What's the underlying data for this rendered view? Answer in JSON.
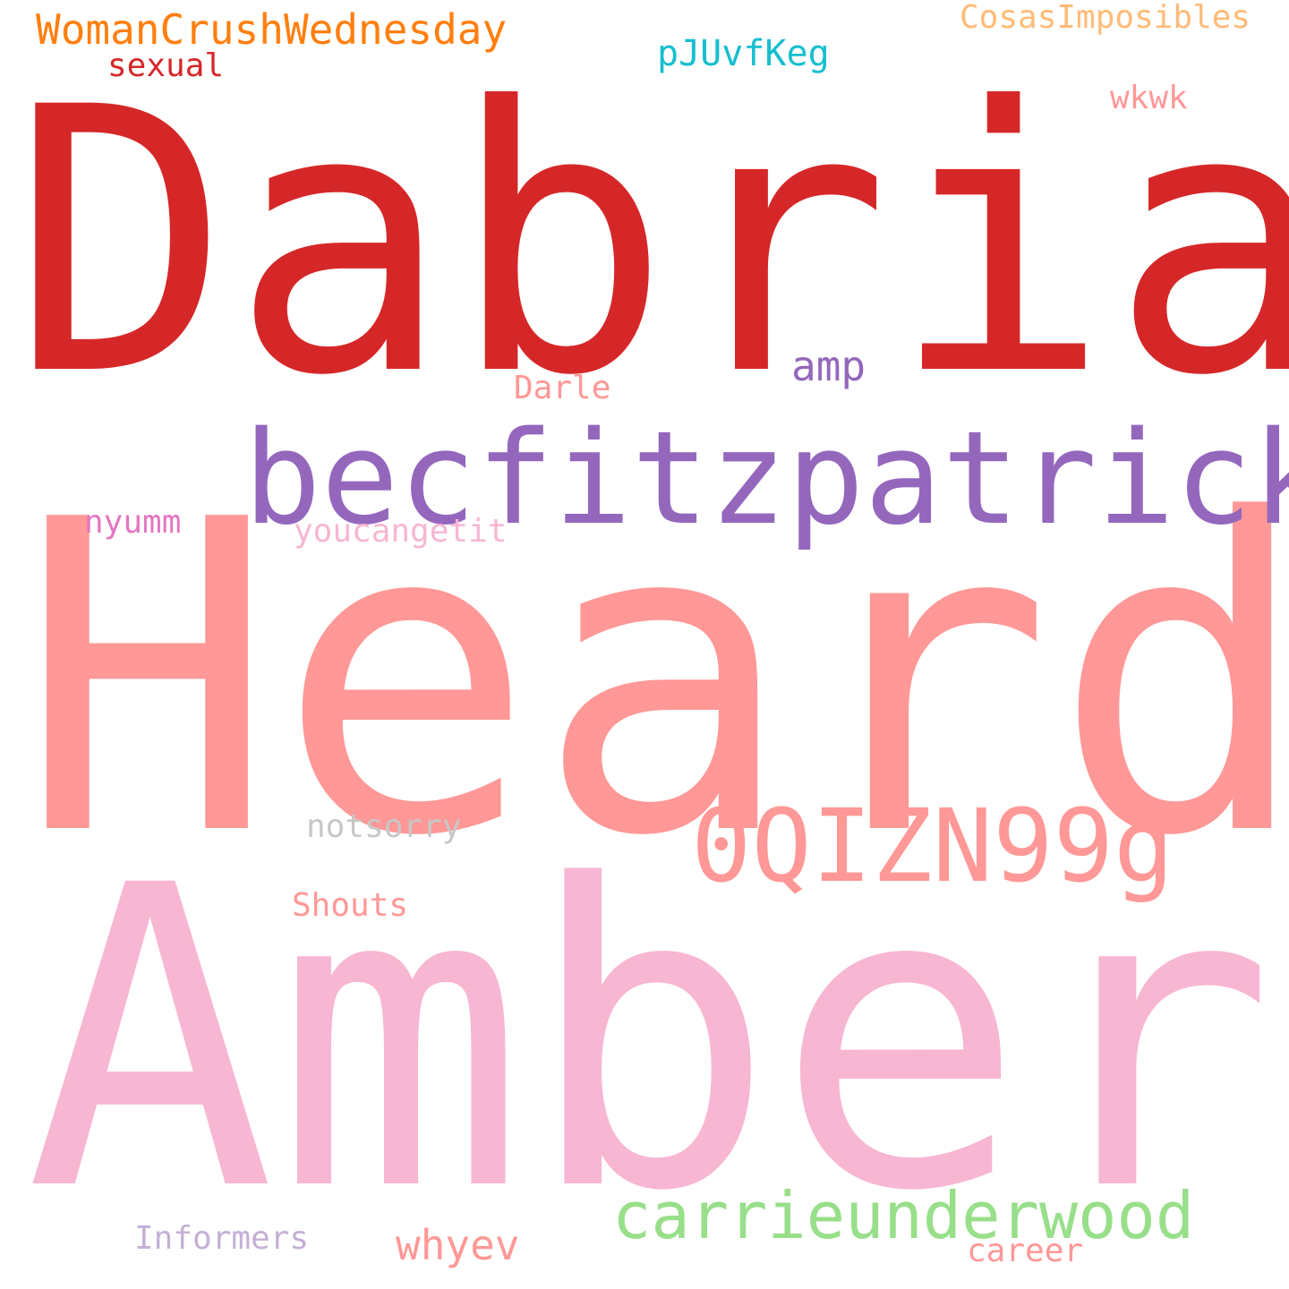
{
  "words": {
    "dabria": {
      "text": "Dabria",
      "color": "#d62728"
    },
    "heard": {
      "text": "Heard",
      "color": "#ff9896"
    },
    "amber": {
      "text": "Amber",
      "color": "#f7b6d2"
    },
    "becfitzpatrick": {
      "text": "becfitzpatrick",
      "color": "#9467bd"
    },
    "oqizn99g": {
      "text": "0QIZN99g",
      "color": "#ff9896"
    },
    "carrieunderwood": {
      "text": "carrieunderwood",
      "color": "#98df8a"
    },
    "womancrush": {
      "text": "WomanCrushWednesday",
      "color": "#ff7f0e"
    },
    "cosas": {
      "text": "CosasImposibles",
      "color": "#ffbb78"
    },
    "sexual": {
      "text": "sexual",
      "color": "#d62728"
    },
    "pjuvfkeg": {
      "text": "pJUvfKeg",
      "color": "#17becf"
    },
    "wkwk": {
      "text": "wkwk",
      "color": "#ff9896"
    },
    "amp": {
      "text": "amp",
      "color": "#9467bd"
    },
    "darle": {
      "text": "Darle",
      "color": "#ff9896"
    },
    "nyumm": {
      "text": "nyumm",
      "color": "#e377c2"
    },
    "youcangetit": {
      "text": "youcangetit",
      "color": "#f7b6d2"
    },
    "notsorry": {
      "text": "notsorry",
      "color": "#c7c7c7"
    },
    "shouts": {
      "text": "Shouts",
      "color": "#ff9896"
    },
    "informers": {
      "text": "Informers",
      "color": "#c5b0d5"
    },
    "whyev": {
      "text": "whyev",
      "color": "#ff9896"
    },
    "career": {
      "text": "career",
      "color": "#ff9896"
    }
  }
}
